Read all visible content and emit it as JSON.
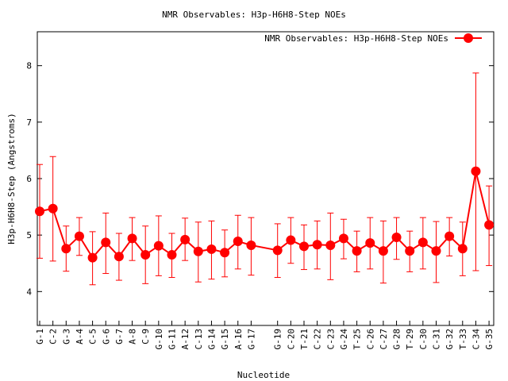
{
  "chart_data": {
    "type": "line",
    "title": "NMR Observables: H3p-H6H8-Step NOEs",
    "xlabel": "Nucleotide",
    "ylabel": "H3p-H6H8-Step (Angstroms)",
    "ylim": [
      3.4,
      8.6
    ],
    "yticks": [
      4,
      5,
      6,
      7,
      8
    ],
    "grid": false,
    "legend": {
      "position": "top-right",
      "entries": [
        "NMR Observables: H3p-H6H8-Step NOEs"
      ]
    },
    "series": [
      {
        "name": "NMR Observables: H3p-H6H8-Step NOEs",
        "color": "#ff0000",
        "x": [
          1,
          2,
          3,
          4,
          5,
          6,
          7,
          8,
          9,
          10,
          11,
          12,
          13,
          14,
          15,
          16,
          17,
          19,
          20,
          21,
          22,
          23,
          24,
          25,
          26,
          27,
          28,
          29,
          30,
          31,
          32,
          33,
          34,
          35
        ],
        "labels": [
          "G-1",
          "C-2",
          "G-3",
          "A-4",
          "C-5",
          "G-6",
          "G-7",
          "A-8",
          "C-9",
          "G-10",
          "G-11",
          "A-12",
          "C-13",
          "G-14",
          "G-15",
          "A-16",
          "G-17",
          "G-19",
          "C-20",
          "T-21",
          "C-22",
          "C-23",
          "G-24",
          "T-25",
          "C-26",
          "C-27",
          "G-28",
          "T-29",
          "C-30",
          "C-31",
          "G-32",
          "T-33",
          "C-34",
          "G-35"
        ],
        "values": [
          5.42,
          5.47,
          4.76,
          4.98,
          4.6,
          4.87,
          4.62,
          4.94,
          4.65,
          4.81,
          4.65,
          4.92,
          4.71,
          4.75,
          4.69,
          4.89,
          4.82,
          4.73,
          4.91,
          4.8,
          4.83,
          4.82,
          4.94,
          4.72,
          4.86,
          4.72,
          4.96,
          4.72,
          4.87,
          4.72,
          4.98,
          4.76,
          6.13,
          5.18
        ],
        "err_high": [
          6.25,
          6.39,
          5.16,
          5.31,
          5.06,
          5.39,
          5.03,
          5.31,
          5.16,
          5.34,
          5.03,
          5.3,
          5.23,
          5.25,
          5.09,
          5.35,
          5.31,
          5.2,
          5.31,
          5.18,
          5.25,
          5.39,
          5.28,
          5.07,
          5.31,
          5.25,
          5.31,
          5.07,
          5.31,
          5.24,
          5.31,
          5.23,
          7.87,
          5.87
        ],
        "err_low": [
          4.59,
          4.54,
          4.36,
          4.64,
          4.12,
          4.32,
          4.2,
          4.55,
          4.14,
          4.28,
          4.25,
          4.55,
          4.17,
          4.22,
          4.26,
          4.4,
          4.29,
          4.25,
          4.5,
          4.39,
          4.4,
          4.21,
          4.58,
          4.35,
          4.4,
          4.15,
          4.57,
          4.35,
          4.4,
          4.16,
          4.63,
          4.28,
          4.37,
          4.46
        ]
      }
    ]
  }
}
